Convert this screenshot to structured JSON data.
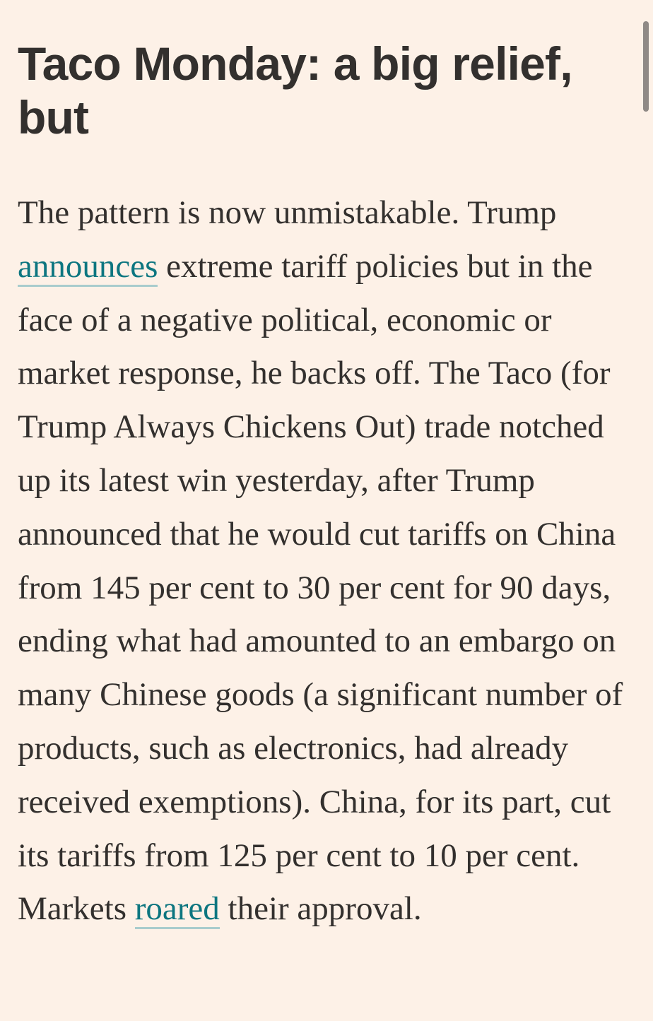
{
  "article": {
    "headline": "Taco Monday: a big relief, but",
    "paragraph": {
      "text_before_link1": "The pattern is now unmistakable. Trump ",
      "link1": "announces",
      "text_middle": " extreme tariff policies but in the face of a negative political, economic or market response, he backs off. The Taco (for Trump Always Chickens Out) trade notched up its latest win yesterday, after Trump announced that he would cut tariffs on China from 145 per cent to 30 per cent for 90 days, ending what had amounted to an embargo on many Chinese goods (a significant number of products, such as electronics, had already received exemptions). China, for its part, cut its tariffs from 125 per cent to 10 per cent. Markets ",
      "link2": "roared",
      "text_after_link2": " their approval."
    }
  },
  "colors": {
    "background": "#fdf1e7",
    "text": "#33302e",
    "link": "#0d7680",
    "link_underline": "#a9cccd"
  }
}
